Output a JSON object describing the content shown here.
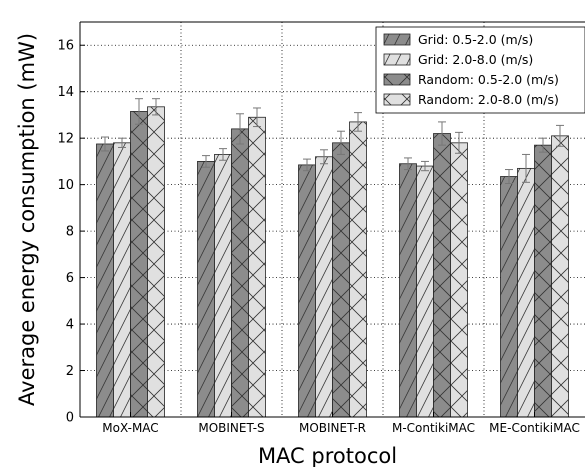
{
  "chart_data": {
    "type": "bar",
    "title": "",
    "xlabel": "MAC protocol",
    "ylabel": "Average energy consumption (mW)",
    "ylim": [
      0,
      17
    ],
    "yticks": [
      0,
      2,
      4,
      6,
      8,
      10,
      12,
      14,
      16
    ],
    "grid": true,
    "legend_position": "top-right",
    "categories": [
      "MoX-MAC",
      "MOBINET-S",
      "MOBINET-R",
      "M-ContikiMAC",
      "ME-ContikiMAC"
    ],
    "series": [
      {
        "name": "Grid: 0.5-2.0 (m/s)",
        "color": "#8c8c8c",
        "pattern": "hatch-forward",
        "values": [
          11.75,
          11.0,
          10.85,
          10.9,
          10.35
        ],
        "errors": [
          0.3,
          0.25,
          0.25,
          0.25,
          0.3
        ]
      },
      {
        "name": "Grid: 2.0-8.0 (m/s)",
        "color": "#e0e0e0",
        "pattern": "hatch-forward",
        "values": [
          11.8,
          11.3,
          11.2,
          10.8,
          10.7
        ],
        "errors": [
          0.2,
          0.25,
          0.3,
          0.2,
          0.6
        ]
      },
      {
        "name": "Random: 0.5-2.0 (m/s)",
        "color": "#8c8c8c",
        "pattern": "cross",
        "values": [
          13.15,
          12.4,
          11.8,
          12.2,
          11.7
        ],
        "errors": [
          0.55,
          0.65,
          0.5,
          0.5,
          0.3
        ]
      },
      {
        "name": "Random: 2.0-8.0 (m/s)",
        "color": "#e0e0e0",
        "pattern": "cross",
        "values": [
          13.35,
          12.9,
          12.7,
          11.8,
          12.1
        ],
        "errors": [
          0.35,
          0.4,
          0.4,
          0.45,
          0.45
        ]
      }
    ]
  }
}
